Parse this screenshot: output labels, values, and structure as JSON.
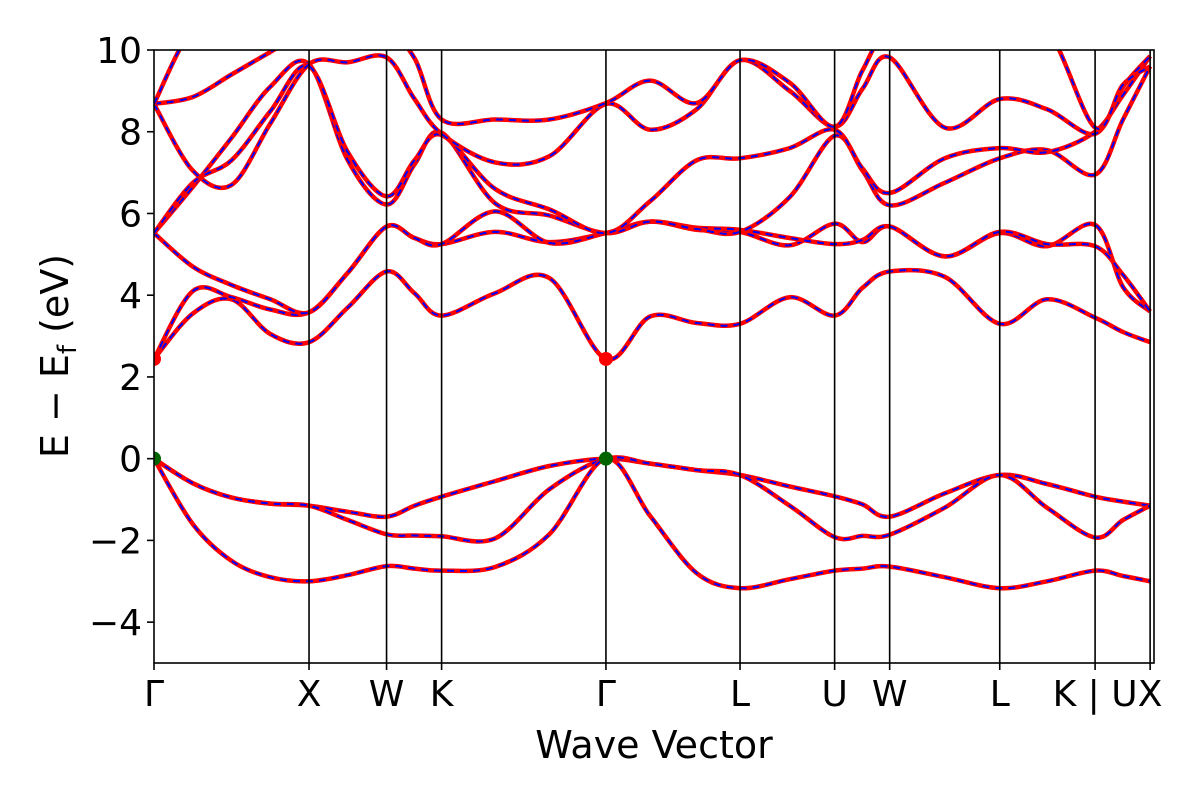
{
  "chart_data": {
    "type": "line",
    "title": "",
    "xlabel": "Wave Vector",
    "ylabel": "E − E_f (eV)",
    "ylabel_parts": {
      "main": "E − E",
      "sub": "f",
      "unit": " (eV)"
    },
    "ylim": [
      -5,
      10
    ],
    "yticks": [
      -4,
      -2,
      0,
      2,
      4,
      6,
      8,
      10
    ],
    "ytick_labels": [
      "−4",
      "−2",
      "0",
      "2",
      "4",
      "6",
      "8",
      "10"
    ],
    "xlim": [
      0,
      6.45
    ],
    "kpoints": [
      {
        "label": "Γ",
        "x": 0.0
      },
      {
        "label": "X",
        "x": 1.0
      },
      {
        "label": "W",
        "x": 1.5
      },
      {
        "label": "K",
        "x": 1.855
      },
      {
        "label": "Γ",
        "x": 2.915
      },
      {
        "label": "L",
        "x": 3.78
      },
      {
        "label": "U",
        "x": 4.39
      },
      {
        "label": "W",
        "x": 4.745
      },
      {
        "label": "L",
        "x": 5.455
      },
      {
        "label": "K | U",
        "x": 6.07
      },
      {
        "label": "X",
        "x": 6.425
      }
    ],
    "grid": false,
    "series_style": {
      "band_color": "#ff0000",
      "overlay_color": "#0000ff",
      "overlay_dash": "dashed",
      "cbm_marker_color": "#ff0000",
      "vbm_marker_color": "#006400"
    },
    "band_x": [
      0,
      0.25,
      0.5,
      0.75,
      1.0,
      1.25,
      1.5,
      1.68,
      1.855,
      2.2,
      2.55,
      2.915,
      3.2,
      3.5,
      3.78,
      4.1,
      4.39,
      4.57,
      4.745,
      5.1,
      5.455,
      5.76,
      6.07,
      6.25,
      6.425
    ],
    "series": [
      {
        "values": [
          0.0,
          -0.6,
          -0.95,
          -1.1,
          -1.15,
          -1.3,
          -1.42,
          -1.15,
          -0.93,
          -0.55,
          -0.18,
          0.0,
          -0.12,
          -0.28,
          -0.4,
          -0.68,
          -0.92,
          -1.12,
          -1.42,
          -0.85,
          -0.4,
          -0.62,
          -0.93,
          -1.05,
          -1.15
        ]
      },
      {
        "values": [
          0.0,
          -0.6,
          -0.95,
          -1.1,
          -1.15,
          -1.5,
          -1.85,
          -1.88,
          -1.9,
          -1.95,
          -0.75,
          0.0,
          -0.12,
          -0.28,
          -0.4,
          -1.15,
          -1.92,
          -1.89,
          -1.86,
          -1.2,
          -0.4,
          -1.2,
          -1.93,
          -1.5,
          -1.15
        ]
      },
      {
        "values": [
          0.0,
          -1.6,
          -2.5,
          -2.9,
          -3.0,
          -2.85,
          -2.63,
          -2.69,
          -2.74,
          -2.65,
          -1.85,
          0.0,
          -1.4,
          -2.8,
          -3.17,
          -2.95,
          -2.74,
          -2.69,
          -2.64,
          -2.9,
          -3.17,
          -3.0,
          -2.74,
          -2.87,
          -3.0
        ]
      },
      {
        "values": [
          2.44,
          3.55,
          3.9,
          3.05,
          2.85,
          3.7,
          4.58,
          4.05,
          3.5,
          4.05,
          4.42,
          2.44,
          3.48,
          3.32,
          3.3,
          3.95,
          3.5,
          4.18,
          4.58,
          4.45,
          3.3,
          3.9,
          3.45,
          3.1,
          2.85
        ]
      },
      {
        "values": [
          2.44,
          4.1,
          3.95,
          3.65,
          3.58,
          4.55,
          5.68,
          5.4,
          5.25,
          5.55,
          5.3,
          5.52,
          5.8,
          5.6,
          5.55,
          5.22,
          5.75,
          5.3,
          5.68,
          4.95,
          5.52,
          5.2,
          5.72,
          4.2,
          3.6
        ]
      },
      {
        "values": [
          5.52,
          4.7,
          4.25,
          3.9,
          3.58,
          4.55,
          5.68,
          5.4,
          5.25,
          6.05,
          5.28,
          5.52,
          5.8,
          5.65,
          5.6,
          5.4,
          5.25,
          5.35,
          5.68,
          4.95,
          5.55,
          5.25,
          5.2,
          4.5,
          3.6
        ]
      },
      {
        "values": [
          5.52,
          6.65,
          7.85,
          9.1,
          9.65,
          7.3,
          6.22,
          7.2,
          7.98,
          6.25,
          5.95,
          5.52,
          5.8,
          5.62,
          5.55,
          6.4,
          7.9,
          7.05,
          6.2,
          6.75,
          7.35,
          7.55,
          6.95,
          8.3,
          9.6
        ]
      },
      {
        "values": [
          5.52,
          6.75,
          7.3,
          8.5,
          9.6,
          7.5,
          6.42,
          7.3,
          7.92,
          6.6,
          6.1,
          5.52,
          6.3,
          7.3,
          7.35,
          7.6,
          8.05,
          7.1,
          6.5,
          7.35,
          7.6,
          7.5,
          8.0,
          8.9,
          9.85
        ]
      },
      {
        "values": [
          8.68,
          7.05,
          6.7,
          8.2,
          9.65,
          9.7,
          9.82,
          8.8,
          7.95,
          7.25,
          7.4,
          8.68,
          8.05,
          8.55,
          9.75,
          9.0,
          8.12,
          9.05,
          9.82,
          8.1,
          8.8,
          8.55,
          7.95,
          9.1,
          9.85
        ]
      },
      {
        "values": [
          8.68,
          8.85,
          9.4,
          9.95,
          10.5,
          10.5,
          10.5,
          9.8,
          8.3,
          8.3,
          8.3,
          8.7,
          9.25,
          8.7,
          9.75,
          9.2,
          8.12,
          9.5,
          10.5,
          10.5,
          10.5,
          10.5,
          8.1,
          9.15,
          9.6
        ]
      },
      {
        "values": [
          8.68,
          10.5,
          10.5,
          10.5,
          10.5,
          10.5,
          10.5,
          10.5,
          10.5,
          10.5,
          10.5,
          10.5,
          10.5,
          10.5,
          10.5,
          10.5,
          10.5,
          10.5,
          10.5,
          10.5,
          10.5,
          10.5,
          10.5,
          10.5,
          10.5
        ]
      }
    ],
    "markers": [
      {
        "x": 0.0,
        "y": 2.44,
        "kind": "cbm"
      },
      {
        "x": 2.915,
        "y": 2.44,
        "kind": "cbm"
      },
      {
        "x": 0.0,
        "y": 0.0,
        "kind": "vbm"
      },
      {
        "x": 2.915,
        "y": 0.0,
        "kind": "vbm"
      }
    ]
  }
}
